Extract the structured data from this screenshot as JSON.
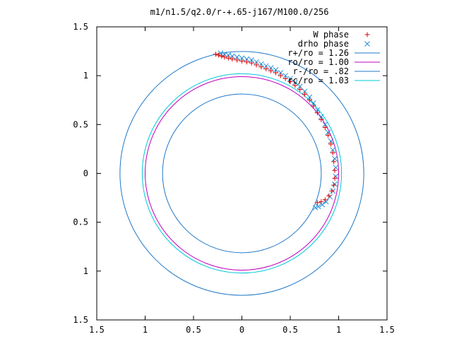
{
  "chart_data": {
    "type": "scatter",
    "title": "m1/n1.5/q2.0/r-+.65-j167/M100.0/256",
    "xlabel": "",
    "ylabel": "",
    "xlim": [
      -1.5,
      1.5
    ],
    "ylim": [
      -1.5,
      1.5
    ],
    "x_ticks": [
      -1.5,
      -1,
      -0.5,
      0,
      0.5,
      1,
      1.5
    ],
    "y_ticks": [
      -1.5,
      -1,
      -0.5,
      0,
      0.5,
      1,
      1.5
    ],
    "x_tick_labels": [
      "1.5",
      "1",
      "0.5",
      "0",
      "0.5",
      "1",
      "1.5"
    ],
    "y_tick_labels": [
      "1.5",
      "1",
      "0.5",
      "0",
      "0.5",
      "1",
      "1.5"
    ],
    "grid": false,
    "legend_position": "top-right",
    "circles": [
      {
        "name": "r+/ro = 1.26",
        "radius": 1.26,
        "color": "#1f78c8"
      },
      {
        "name": "ro/ro = 1.00",
        "radius": 1.0,
        "color": "#c000c0"
      },
      {
        "name": "r-/ro = .82",
        "radius": 0.82,
        "color": "#1f78c8"
      },
      {
        "name": "rc/ro = 1.03",
        "radius": 1.03,
        "color": "#00c8d8"
      }
    ],
    "series": [
      {
        "name": "W phase",
        "marker": "plus",
        "color": "#e00000",
        "points": [
          [
            -0.27,
            1.22
          ],
          [
            -0.24,
            1.21
          ],
          [
            -0.21,
            1.2
          ],
          [
            -0.18,
            1.19
          ],
          [
            -0.14,
            1.18
          ],
          [
            -0.1,
            1.17
          ],
          [
            -0.05,
            1.16
          ],
          [
            0.0,
            1.15
          ],
          [
            0.05,
            1.14
          ],
          [
            0.1,
            1.13
          ],
          [
            0.15,
            1.11
          ],
          [
            0.2,
            1.09
          ],
          [
            0.25,
            1.07
          ],
          [
            0.3,
            1.05
          ],
          [
            0.35,
            1.03
          ],
          [
            0.4,
            1.0
          ],
          [
            0.45,
            0.97
          ],
          [
            0.5,
            0.94
          ],
          [
            0.55,
            0.9
          ],
          [
            0.6,
            0.86
          ],
          [
            0.65,
            0.81
          ],
          [
            0.7,
            0.75
          ],
          [
            0.74,
            0.69
          ],
          [
            0.78,
            0.62
          ],
          [
            0.82,
            0.55
          ],
          [
            0.86,
            0.47
          ],
          [
            0.89,
            0.39
          ],
          [
            0.92,
            0.3
          ],
          [
            0.94,
            0.21
          ],
          [
            0.95,
            0.12
          ],
          [
            0.96,
            0.03
          ],
          [
            0.96,
            -0.05
          ],
          [
            0.95,
            -0.12
          ],
          [
            0.93,
            -0.18
          ],
          [
            0.9,
            -0.23
          ],
          [
            0.86,
            -0.27
          ],
          [
            0.82,
            -0.29
          ],
          [
            0.78,
            -0.3
          ]
        ]
      },
      {
        "name": "drho phase",
        "marker": "x",
        "color": "#1f90d8",
        "points": [
          [
            -0.22,
            1.23
          ],
          [
            -0.18,
            1.22
          ],
          [
            -0.14,
            1.21
          ],
          [
            -0.1,
            1.2
          ],
          [
            -0.05,
            1.19
          ],
          [
            0.0,
            1.18
          ],
          [
            0.05,
            1.17
          ],
          [
            0.1,
            1.16
          ],
          [
            0.15,
            1.14
          ],
          [
            0.2,
            1.12
          ],
          [
            0.25,
            1.1
          ],
          [
            0.3,
            1.08
          ],
          [
            0.35,
            1.06
          ],
          [
            0.4,
            1.03
          ],
          [
            0.45,
            1.0
          ],
          [
            0.5,
            0.97
          ],
          [
            0.55,
            0.93
          ],
          [
            0.6,
            0.89
          ],
          [
            0.65,
            0.84
          ],
          [
            0.7,
            0.78
          ],
          [
            0.74,
            0.72
          ],
          [
            0.78,
            0.65
          ],
          [
            0.82,
            0.58
          ],
          [
            0.86,
            0.5
          ],
          [
            0.89,
            0.42
          ],
          [
            0.92,
            0.33
          ],
          [
            0.94,
            0.24
          ],
          [
            0.96,
            0.15
          ],
          [
            0.97,
            0.06
          ],
          [
            0.97,
            -0.03
          ],
          [
            0.96,
            -0.11
          ],
          [
            0.94,
            -0.18
          ],
          [
            0.91,
            -0.24
          ],
          [
            0.87,
            -0.29
          ],
          [
            0.83,
            -0.32
          ],
          [
            0.79,
            -0.34
          ],
          [
            0.76,
            -0.35
          ]
        ]
      }
    ]
  }
}
